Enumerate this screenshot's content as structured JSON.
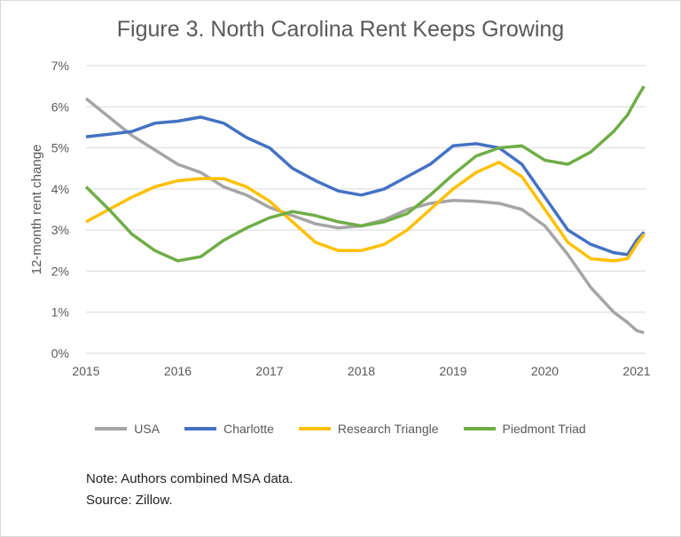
{
  "chart_data": {
    "type": "line",
    "title": "Figure 3. North Carolina Rent Keeps Growing",
    "xlabel": "",
    "ylabel": "12-month rent change",
    "xlim": [
      2015,
      2021.1
    ],
    "ylim": [
      0,
      7
    ],
    "xticks": [
      "2015",
      "2016",
      "2017",
      "2018",
      "2019",
      "2020",
      "2021"
    ],
    "yticks": [
      "0%",
      "1%",
      "2%",
      "3%",
      "4%",
      "5%",
      "6%",
      "7%"
    ],
    "grid": true,
    "legend": "bottom",
    "x": [
      2015.0,
      2015.25,
      2015.5,
      2015.75,
      2016.0,
      2016.25,
      2016.5,
      2016.75,
      2017.0,
      2017.25,
      2017.5,
      2017.75,
      2018.0,
      2018.25,
      2018.5,
      2018.75,
      2019.0,
      2019.25,
      2019.5,
      2019.75,
      2020.0,
      2020.25,
      2020.5,
      2020.75,
      2020.9,
      2021.0,
      2021.08
    ],
    "series": [
      {
        "name": "USA",
        "color": "#a5a5a5",
        "values": [
          6.2,
          5.75,
          5.3,
          4.95,
          4.6,
          4.4,
          4.05,
          3.85,
          3.55,
          3.35,
          3.15,
          3.05,
          3.1,
          3.25,
          3.5,
          3.65,
          3.72,
          3.7,
          3.65,
          3.5,
          3.1,
          2.4,
          1.6,
          1.0,
          0.75,
          0.55,
          0.5
        ]
      },
      {
        "name": "Charlotte",
        "color": "#4472c4",
        "values": [
          5.27,
          5.33,
          5.4,
          5.6,
          5.65,
          5.75,
          5.6,
          5.25,
          5.0,
          4.5,
          4.2,
          3.95,
          3.85,
          4.0,
          4.3,
          4.6,
          5.05,
          5.1,
          5.0,
          4.6,
          3.8,
          3.0,
          2.65,
          2.45,
          2.4,
          2.75,
          2.95
        ]
      },
      {
        "name": "Research Triangle",
        "color": "#ffc000",
        "values": [
          3.2,
          3.5,
          3.8,
          4.05,
          4.2,
          4.25,
          4.25,
          4.05,
          3.7,
          3.2,
          2.7,
          2.5,
          2.5,
          2.65,
          3.0,
          3.5,
          4.0,
          4.4,
          4.65,
          4.3,
          3.5,
          2.7,
          2.3,
          2.25,
          2.3,
          2.65,
          2.9
        ]
      },
      {
        "name": "Piedmont Triad",
        "color": "#70ad47",
        "values": [
          4.05,
          3.5,
          2.9,
          2.5,
          2.25,
          2.35,
          2.75,
          3.05,
          3.3,
          3.45,
          3.35,
          3.2,
          3.1,
          3.2,
          3.4,
          3.85,
          4.35,
          4.8,
          5.0,
          5.05,
          4.7,
          4.6,
          4.9,
          5.4,
          5.8,
          6.2,
          6.5
        ]
      }
    ]
  },
  "notes": {
    "note": "Note: Authors combined MSA data.",
    "source": "Source: Zillow."
  }
}
